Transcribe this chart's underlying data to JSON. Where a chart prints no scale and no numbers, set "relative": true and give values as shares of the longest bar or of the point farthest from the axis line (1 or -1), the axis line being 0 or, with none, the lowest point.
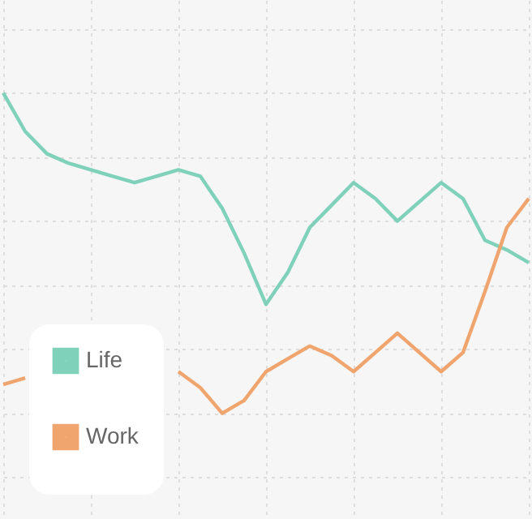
{
  "chart_data": {
    "type": "line",
    "relative": true,
    "categories": [
      null,
      null,
      null,
      null,
      null,
      null,
      null,
      null,
      null,
      null,
      null,
      null,
      null,
      null,
      null,
      null,
      null,
      null,
      null,
      null,
      null,
      null,
      null,
      null,
      null
    ],
    "tick_labels": false,
    "grid": true,
    "legend": "bottom left",
    "marker": "none",
    "line_style": "solid",
    "series": [
      {
        "name": "Life",
        "color": "#7fd1b9",
        "values": [
          1.0,
          0.88,
          0.81,
          0.78,
          0.76,
          0.74,
          0.72,
          0.74,
          0.76,
          0.74,
          0.64,
          0.5,
          0.34,
          0.44,
          0.58,
          0.65,
          0.72,
          0.67,
          0.6,
          0.66,
          0.72,
          0.67,
          0.54,
          0.51,
          0.47
        ]
      },
      {
        "name": "Work",
        "color": "#f0a46e",
        "values": [
          0.09,
          0.11,
          null,
          null,
          null,
          null,
          null,
          null,
          0.13,
          0.08,
          0.0,
          0.04,
          0.13,
          0.17,
          0.21,
          0.18,
          0.13,
          0.19,
          0.25,
          0.19,
          0.13,
          0.19,
          0.38,
          0.58,
          0.67
        ]
      }
    ]
  }
}
